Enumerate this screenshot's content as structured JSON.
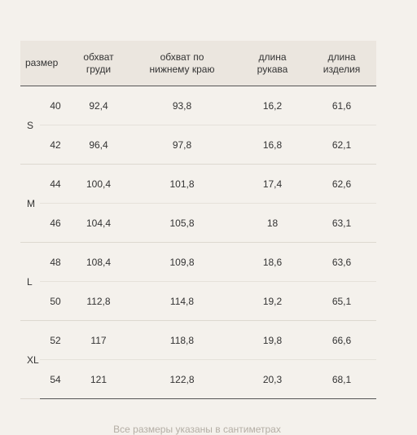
{
  "table": {
    "headers": {
      "size": "размер",
      "chest_line1": "обхват",
      "chest_line2": "груди",
      "hem_line1": "обхват по",
      "hem_line2": "нижнему краю",
      "sleeve_line1": "длина",
      "sleeve_line2": "рукава",
      "length_line1": "длина",
      "length_line2": "изделия"
    },
    "groups": [
      {
        "letter": "S",
        "rows": [
          {
            "size": "40",
            "chest": "92,4",
            "hem": "93,8",
            "sleeve": "16,2",
            "length": "61,6"
          },
          {
            "size": "42",
            "chest": "96,4",
            "hem": "97,8",
            "sleeve": "16,8",
            "length": "62,1"
          }
        ]
      },
      {
        "letter": "M",
        "rows": [
          {
            "size": "44",
            "chest": "100,4",
            "hem": "101,8",
            "sleeve": "17,4",
            "length": "62,6"
          },
          {
            "size": "46",
            "chest": "104,4",
            "hem": "105,8",
            "sleeve": "18",
            "length": "63,1"
          }
        ]
      },
      {
        "letter": "L",
        "rows": [
          {
            "size": "48",
            "chest": "108,4",
            "hem": "109,8",
            "sleeve": "18,6",
            "length": "63,6"
          },
          {
            "size": "50",
            "chest": "112,8",
            "hem": "114,8",
            "sleeve": "19,2",
            "length": "65,1"
          }
        ]
      },
      {
        "letter": "XL",
        "rows": [
          {
            "size": "52",
            "chest": "117",
            "hem": "118,8",
            "sleeve": "19,8",
            "length": "66,6"
          },
          {
            "size": "54",
            "chest": "121",
            "hem": "122,8",
            "sleeve": "20,3",
            "length": "68,1"
          }
        ]
      }
    ]
  },
  "footnote": "Все размеры указаны в сантиметрах"
}
